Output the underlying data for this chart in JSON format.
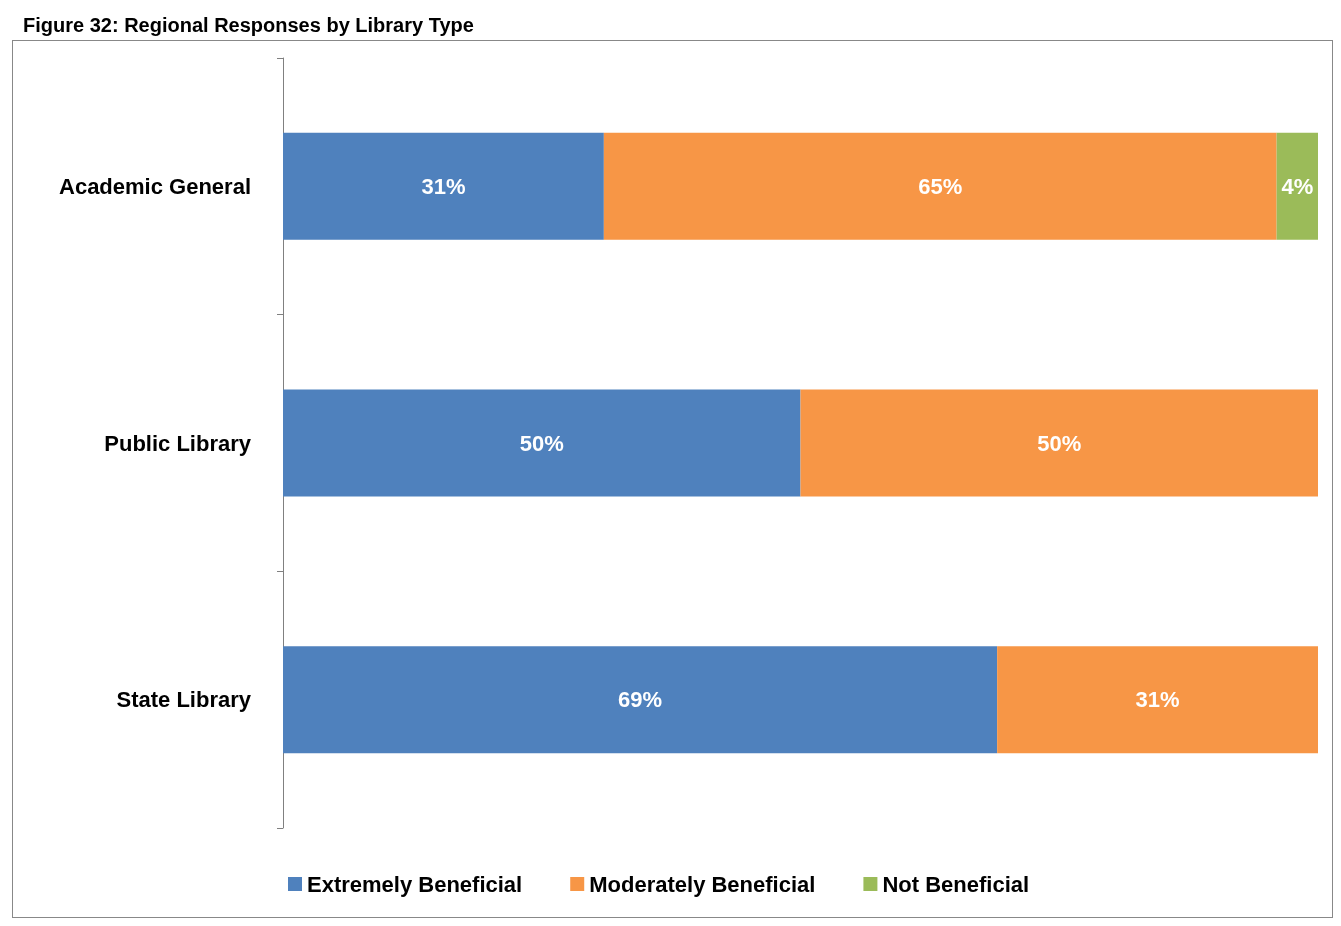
{
  "chart_data": {
    "type": "bar",
    "orientation": "horizontal",
    "stacked": true,
    "title": "Figure 32: Regional Responses by Library Type",
    "categories": [
      "Academic General",
      "Public Library",
      "State Library"
    ],
    "series": [
      {
        "name": "Extremely Beneficial",
        "color": "#4f81bd",
        "values": [
          31,
          50,
          69
        ],
        "value_labels": [
          "31%",
          "50%",
          "69%"
        ]
      },
      {
        "name": "Moderately Beneficial",
        "color": "#f79646",
        "values": [
          65,
          50,
          31
        ],
        "value_labels": [
          "65%",
          "50%",
          "31%"
        ]
      },
      {
        "name": "Not Beneficial",
        "color": "#9bbb59",
        "values": [
          4,
          null,
          null
        ],
        "value_labels": [
          "4%",
          null,
          null
        ]
      }
    ],
    "legend": "bottom",
    "tick_labels": "y"
  }
}
